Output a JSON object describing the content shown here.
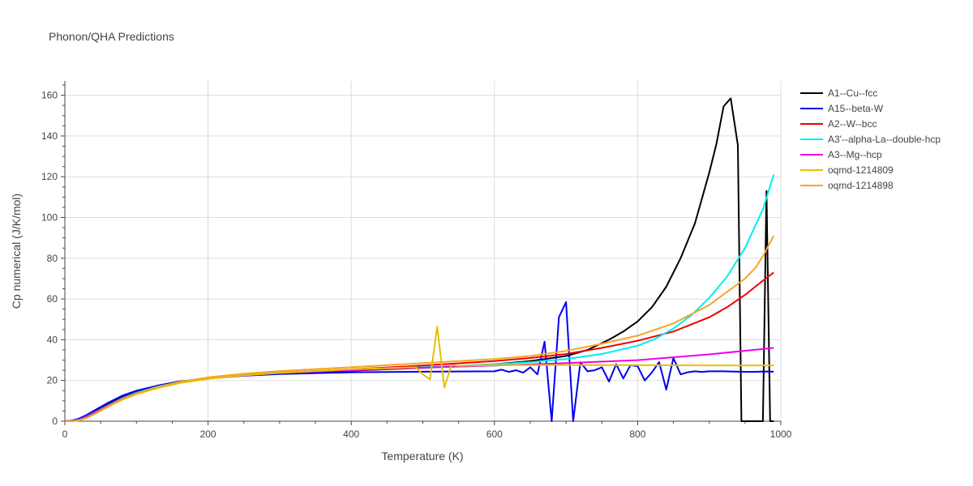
{
  "chart_data": {
    "type": "line",
    "title": "Phonon/QHA Predictions",
    "xlabel": "Temperature (K)",
    "ylabel": "Cp numerical (J/K/mol)",
    "xlim": [
      0,
      1000
    ],
    "ylim": [
      0,
      167
    ],
    "x_ticks": [
      0,
      200,
      400,
      600,
      800,
      1000
    ],
    "y_ticks": [
      0,
      20,
      40,
      60,
      80,
      100,
      120,
      140,
      160
    ],
    "grid": true,
    "legend_position": "right",
    "series": [
      {
        "name": "A1--Cu--fcc",
        "color": "#000000",
        "x": [
          0,
          10,
          20,
          30,
          40,
          60,
          80,
          100,
          130,
          160,
          200,
          250,
          300,
          400,
          500,
          600,
          650,
          700,
          730,
          760,
          780,
          800,
          820,
          840,
          860,
          880,
          900,
          910,
          920,
          930,
          940,
          945,
          960,
          975,
          980,
          985,
          990
        ],
        "y": [
          0,
          0.2,
          1,
          2.5,
          4.5,
          8.5,
          12,
          14.5,
          17.5,
          19.5,
          21,
          22.5,
          23.5,
          24.8,
          26.2,
          28,
          29.5,
          32,
          35,
          40,
          44,
          49,
          56,
          66,
          80,
          97,
          122,
          136,
          154.5,
          158.5,
          135.5,
          0,
          0,
          0,
          113,
          0,
          0
        ]
      },
      {
        "name": "A15--beta-W",
        "color": "#0000ee",
        "x": [
          0,
          10,
          20,
          30,
          40,
          60,
          80,
          100,
          130,
          160,
          200,
          250,
          300,
          400,
          500,
          600,
          610,
          620,
          630,
          640,
          650,
          660,
          670,
          680,
          690,
          700,
          710,
          720,
          730,
          740,
          750,
          760,
          770,
          780,
          790,
          800,
          810,
          820,
          830,
          840,
          850,
          860,
          870,
          880,
          890,
          900,
          920,
          940,
          960,
          980,
          990
        ],
        "y": [
          0,
          0.3,
          1.3,
          3,
          5,
          9,
          12.5,
          15,
          17.5,
          19.5,
          21,
          22.3,
          23.2,
          24,
          24.3,
          24.5,
          25.3,
          24.2,
          25,
          23.8,
          26.5,
          23,
          39,
          0,
          51,
          58.5,
          0,
          29,
          24.5,
          25,
          26.5,
          19.5,
          28,
          21,
          27.5,
          27,
          20,
          24,
          29,
          15.5,
          31,
          23,
          24,
          24.5,
          24.2,
          24.5,
          24.5,
          24.3,
          24.2,
          24.4,
          24.3
        ]
      },
      {
        "name": "A2--W--bcc",
        "color": "#ee0000",
        "x": [
          0,
          10,
          20,
          30,
          40,
          60,
          80,
          100,
          130,
          160,
          200,
          250,
          300,
          400,
          500,
          600,
          650,
          700,
          750,
          800,
          850,
          900,
          925,
          950,
          975,
          990
        ],
        "y": [
          0,
          0.1,
          0.7,
          2,
          3.8,
          7.5,
          11,
          13.8,
          16.8,
          19,
          21,
          22.6,
          23.8,
          25.5,
          27.3,
          29.5,
          31,
          33,
          36,
          39.5,
          44,
          51,
          56,
          62,
          69,
          73
        ]
      },
      {
        "name": "A3'--alpha-La--double-hcp",
        "color": "#00eeee",
        "x": [
          0,
          10,
          20,
          30,
          40,
          60,
          80,
          100,
          130,
          160,
          200,
          250,
          300,
          400,
          500,
          600,
          650,
          700,
          750,
          800,
          825,
          850,
          875,
          900,
          925,
          950,
          975,
          990
        ],
        "y": [
          0,
          0.1,
          0.8,
          2.2,
          4,
          7.8,
          11.3,
          14,
          17,
          19.2,
          21.2,
          22.7,
          23.8,
          25.2,
          26.5,
          28,
          29,
          30.5,
          33,
          37,
          40.5,
          45.5,
          52,
          60.5,
          71,
          85,
          104,
          121
        ]
      },
      {
        "name": "A3--Mg--hcp",
        "color": "#ee00ee",
        "x": [
          0,
          10,
          20,
          30,
          40,
          60,
          80,
          100,
          130,
          160,
          200,
          250,
          300,
          400,
          500,
          600,
          700,
          800,
          900,
          990
        ],
        "y": [
          0,
          0.1,
          0.7,
          2,
          3.8,
          7.6,
          11,
          13.7,
          16.7,
          19,
          21,
          22.6,
          23.7,
          25,
          26.3,
          27.3,
          28.5,
          30,
          32.8,
          36
        ]
      },
      {
        "name": "oqmd-1214809",
        "color": "#e8c000",
        "x": [
          0,
          10,
          20,
          30,
          40,
          60,
          80,
          100,
          130,
          160,
          200,
          250,
          300,
          400,
          490,
          500,
          510,
          520,
          530,
          540,
          550,
          600,
          700,
          800,
          900,
          990
        ],
        "y": [
          0,
          0,
          0.4,
          1.5,
          3.2,
          7,
          10.5,
          13.3,
          16.3,
          18.7,
          20.8,
          22.5,
          23.7,
          25.5,
          26.5,
          23,
          20.5,
          46.5,
          16.5,
          27.5,
          27.2,
          27.5,
          27.6,
          27.5,
          27.4,
          27.4
        ]
      },
      {
        "name": "oqmd-1214898",
        "color": "#f5a623",
        "x": [
          0,
          10,
          20,
          30,
          40,
          60,
          80,
          100,
          130,
          160,
          200,
          250,
          300,
          400,
          500,
          600,
          650,
          700,
          750,
          800,
          850,
          900,
          925,
          950,
          965,
          975,
          990
        ],
        "y": [
          0,
          0,
          0.5,
          1.6,
          3.3,
          7.2,
          10.8,
          13.6,
          16.8,
          19.3,
          21.5,
          23.3,
          24.6,
          26.5,
          28.5,
          30.5,
          32,
          34.5,
          38,
          42,
          48,
          57,
          63.5,
          70,
          75.5,
          81,
          91
        ]
      }
    ]
  }
}
